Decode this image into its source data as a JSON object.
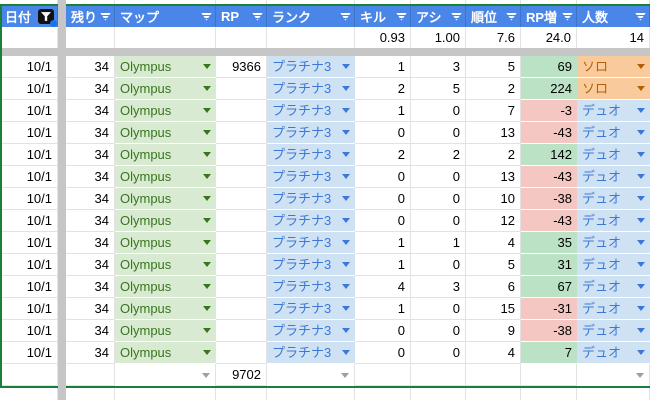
{
  "table": {
    "columns": [
      {
        "id": "date",
        "label": "日付"
      },
      {
        "id": "remaining",
        "label": "残り"
      },
      {
        "id": "map",
        "label": "マップ"
      },
      {
        "id": "rp",
        "label": "RP"
      },
      {
        "id": "rank",
        "label": "ランク"
      },
      {
        "id": "kill",
        "label": "キル"
      },
      {
        "id": "assist",
        "label": "アシ"
      },
      {
        "id": "place",
        "label": "順位"
      },
      {
        "id": "rp_delta",
        "label": "RP増"
      },
      {
        "id": "party",
        "label": "人数"
      }
    ],
    "stats_row": {
      "kill": "0.93",
      "assist": "1.00",
      "place": "7.6",
      "rp_delta": "24.0",
      "party_count": "14"
    },
    "rows": [
      {
        "date": "10/1",
        "remaining": "34",
        "map": "Olympus",
        "rp": "9366",
        "rank": "プラチナ3",
        "kill": "1",
        "assist": "3",
        "place": "5",
        "rp_delta": "69",
        "party": "ソロ",
        "party_type": "solo"
      },
      {
        "date": "10/1",
        "remaining": "34",
        "map": "Olympus",
        "rp": "",
        "rank": "プラチナ3",
        "kill": "2",
        "assist": "5",
        "place": "2",
        "rp_delta": "224",
        "party": "ソロ",
        "party_type": "solo"
      },
      {
        "date": "10/1",
        "remaining": "34",
        "map": "Olympus",
        "rp": "",
        "rank": "プラチナ3",
        "kill": "1",
        "assist": "0",
        "place": "7",
        "rp_delta": "-3",
        "party": "デュオ",
        "party_type": "duo"
      },
      {
        "date": "10/1",
        "remaining": "34",
        "map": "Olympus",
        "rp": "",
        "rank": "プラチナ3",
        "kill": "0",
        "assist": "0",
        "place": "13",
        "rp_delta": "-43",
        "party": "デュオ",
        "party_type": "duo"
      },
      {
        "date": "10/1",
        "remaining": "34",
        "map": "Olympus",
        "rp": "",
        "rank": "プラチナ3",
        "kill": "2",
        "assist": "2",
        "place": "2",
        "rp_delta": "142",
        "party": "デュオ",
        "party_type": "duo"
      },
      {
        "date": "10/1",
        "remaining": "34",
        "map": "Olympus",
        "rp": "",
        "rank": "プラチナ3",
        "kill": "0",
        "assist": "0",
        "place": "13",
        "rp_delta": "-43",
        "party": "デュオ",
        "party_type": "duo"
      },
      {
        "date": "10/1",
        "remaining": "34",
        "map": "Olympus",
        "rp": "",
        "rank": "プラチナ3",
        "kill": "0",
        "assist": "0",
        "place": "10",
        "rp_delta": "-38",
        "party": "デュオ",
        "party_type": "duo"
      },
      {
        "date": "10/1",
        "remaining": "34",
        "map": "Olympus",
        "rp": "",
        "rank": "プラチナ3",
        "kill": "0",
        "assist": "0",
        "place": "12",
        "rp_delta": "-43",
        "party": "デュオ",
        "party_type": "duo"
      },
      {
        "date": "10/1",
        "remaining": "34",
        "map": "Olympus",
        "rp": "",
        "rank": "プラチナ3",
        "kill": "1",
        "assist": "1",
        "place": "4",
        "rp_delta": "35",
        "party": "デュオ",
        "party_type": "duo"
      },
      {
        "date": "10/1",
        "remaining": "34",
        "map": "Olympus",
        "rp": "",
        "rank": "プラチナ3",
        "kill": "1",
        "assist": "0",
        "place": "5",
        "rp_delta": "31",
        "party": "デュオ",
        "party_type": "duo"
      },
      {
        "date": "10/1",
        "remaining": "34",
        "map": "Olympus",
        "rp": "",
        "rank": "プラチナ3",
        "kill": "4",
        "assist": "3",
        "place": "6",
        "rp_delta": "67",
        "party": "デュオ",
        "party_type": "duo"
      },
      {
        "date": "10/1",
        "remaining": "34",
        "map": "Olympus",
        "rp": "",
        "rank": "プラチナ3",
        "kill": "1",
        "assist": "0",
        "place": "15",
        "rp_delta": "-31",
        "party": "デュオ",
        "party_type": "duo"
      },
      {
        "date": "10/1",
        "remaining": "34",
        "map": "Olympus",
        "rp": "",
        "rank": "プラチナ3",
        "kill": "0",
        "assist": "0",
        "place": "9",
        "rp_delta": "-38",
        "party": "デュオ",
        "party_type": "duo"
      },
      {
        "date": "10/1",
        "remaining": "34",
        "map": "Olympus",
        "rp": "",
        "rank": "プラチナ3",
        "kill": "0",
        "assist": "0",
        "place": "4",
        "rp_delta": "7",
        "party": "デュオ",
        "party_type": "duo"
      }
    ],
    "footer": {
      "rp_total": "9702"
    }
  },
  "icons": {
    "active_filter": "filter-funnel-active",
    "column_filter": "filter-lines",
    "dropdown": "chevron-down"
  },
  "colors": {
    "header_bg": "#4a86e8",
    "header_fg": "#ffffff",
    "range_border": "#188038",
    "divider": "#c6c6c6",
    "grid": "#e2e2e2",
    "map_bg": "#d9ead3",
    "map_fg": "#38761d",
    "rank_bg": "#cfe2f3",
    "rank_fg": "#3c78d8",
    "solo_bg": "#f9cb9c",
    "solo_fg": "#b45f06",
    "duo_bg": "#cfe2f3",
    "duo_fg": "#3c78d8",
    "pos_bg": "#bce2c6",
    "neg_bg": "#f4c7c3",
    "filter_active_bg": "#111111",
    "filter_badge": "#1a73e8",
    "footer_arrow": "#9aa0a6"
  }
}
